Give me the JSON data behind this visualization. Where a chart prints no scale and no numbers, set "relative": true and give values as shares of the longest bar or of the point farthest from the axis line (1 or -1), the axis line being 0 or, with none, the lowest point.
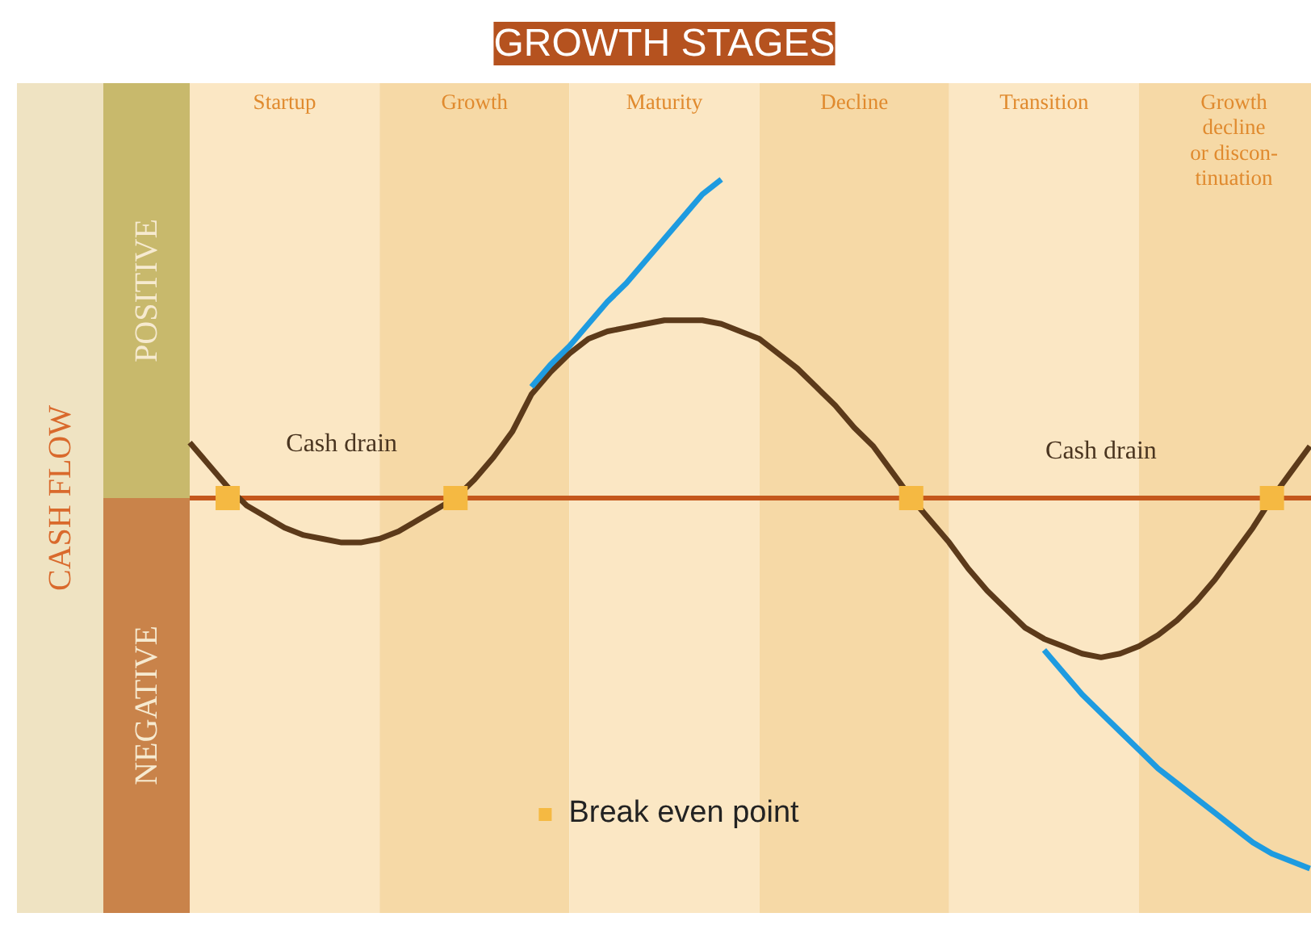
{
  "chart_data": {
    "type": "line",
    "title": "GROWTH STAGES",
    "ylabel": "CASH FLOW",
    "relative": true,
    "legend": "bottom",
    "line_style": "solid",
    "marker": "none",
    "categories": [
      null,
      null,
      null,
      null,
      null,
      "Startup",
      null,
      null,
      null,
      null,
      null,
      null,
      null,
      null,
      null,
      "Growth",
      null,
      null,
      null,
      null,
      null,
      null,
      null,
      null,
      null,
      "Maturity",
      null,
      null,
      null,
      null,
      null,
      null,
      null,
      null,
      null,
      "Decline",
      null,
      null,
      null,
      null,
      null,
      null,
      null,
      null,
      null,
      "Transition",
      null,
      null,
      null,
      null,
      null,
      null,
      null,
      null,
      null,
      "Growth\ndecline\nor discon-\ntinuation",
      null,
      null,
      null,
      null
    ],
    "series": [
      {
        "color": "#5c3a1a",
        "values": [
          0.15,
          0.09,
          0.03,
          -0.02,
          -0.05,
          -0.08,
          -0.1,
          -0.11,
          -0.12,
          -0.12,
          -0.11,
          -0.09,
          -0.06,
          -0.03,
          0,
          0.05,
          0.11,
          0.18,
          0.28,
          0.34,
          0.39,
          0.43,
          0.45,
          0.46,
          0.47,
          0.48,
          0.48,
          0.48,
          0.47,
          0.45,
          0.43,
          0.39,
          0.35,
          0.3,
          0.25,
          0.19,
          0.14,
          0.07,
          0,
          -0.06,
          -0.12,
          -0.19,
          -0.25,
          -0.3,
          -0.35,
          -0.38,
          -0.4,
          -0.42,
          -0.43,
          -0.42,
          -0.4,
          -0.37,
          -0.33,
          -0.28,
          -0.22,
          -0.15,
          -0.08,
          0,
          0.07,
          0.14
        ]
      },
      {
        "color": "#1e9be0",
        "values": [
          null,
          null,
          null,
          null,
          null,
          null,
          null,
          null,
          null,
          null,
          null,
          null,
          null,
          null,
          null,
          null,
          null,
          null,
          0.3,
          0.36,
          0.41,
          0.47,
          0.53,
          0.58,
          0.64,
          0.7,
          0.76,
          0.82,
          0.86,
          null,
          null,
          null,
          null,
          null,
          null,
          null,
          null,
          null,
          null,
          null,
          null,
          null,
          null,
          null,
          null,
          null,
          null,
          null,
          null,
          null,
          null,
          null,
          null,
          null,
          null,
          null,
          null,
          null,
          null,
          null
        ]
      },
      {
        "color": "#1e9be0",
        "values": [
          null,
          null,
          null,
          null,
          null,
          null,
          null,
          null,
          null,
          null,
          null,
          null,
          null,
          null,
          null,
          null,
          null,
          null,
          null,
          null,
          null,
          null,
          null,
          null,
          null,
          null,
          null,
          null,
          null,
          null,
          null,
          null,
          null,
          null,
          null,
          null,
          null,
          null,
          null,
          null,
          null,
          null,
          null,
          null,
          null,
          -0.41,
          -0.47,
          -0.53,
          -0.58,
          -0.63,
          -0.68,
          -0.73,
          -0.77,
          -0.81,
          -0.85,
          -0.89,
          -0.93,
          -0.96,
          -0.98,
          -1
        ]
      },
      {
        "type": "scatter",
        "marker": "square",
        "name": "Break even point",
        "color": "#f5b942",
        "values": [
          null,
          null,
          0,
          null,
          null,
          null,
          null,
          null,
          null,
          null,
          null,
          null,
          null,
          null,
          0,
          null,
          null,
          null,
          null,
          null,
          null,
          null,
          null,
          null,
          null,
          null,
          null,
          null,
          null,
          null,
          null,
          null,
          null,
          null,
          null,
          null,
          null,
          null,
          0,
          null,
          null,
          null,
          null,
          null,
          null,
          null,
          null,
          null,
          null,
          null,
          null,
          null,
          null,
          null,
          null,
          null,
          null,
          0,
          null,
          null
        ]
      }
    ],
    "annotations": [
      "Cash drain",
      "Cash drain",
      "POSITIVE",
      "NEGATIVE"
    ],
    "ref_lines": [
      {
        "axis": "y",
        "value": 0,
        "color": "#c4571c"
      }
    ]
  }
}
